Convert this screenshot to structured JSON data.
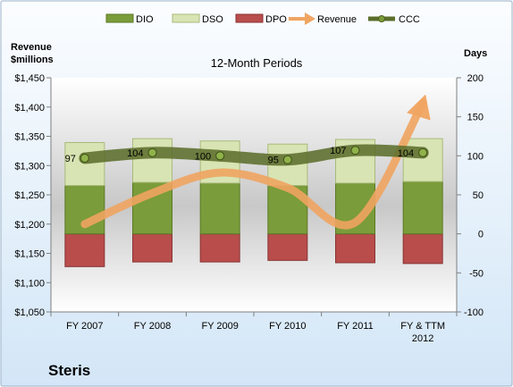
{
  "chart_data": {
    "type": "bar",
    "title": "12-Month Periods",
    "company": "Steris",
    "y_left_label": "Revenue\n$millions",
    "y_right_label": "Days",
    "categories": [
      "FY 2007",
      "FY 2008",
      "FY 2009",
      "FY 2010",
      "FY 2011",
      "FY & TTM\n2012"
    ],
    "y_left_ticks": [
      "$1,050",
      "$1,100",
      "$1,150",
      "$1,200",
      "$1,250",
      "$1,300",
      "$1,350",
      "$1,400",
      "$1,450"
    ],
    "y_right_ticks": [
      "-100",
      "-50",
      "0",
      "50",
      "100",
      "150",
      "200"
    ],
    "ylim_left": [
      1050,
      1450
    ],
    "ylim_right": [
      -100,
      200
    ],
    "legend_position": "top",
    "grid": false,
    "series": [
      {
        "name": "DIO",
        "type": "stacked-bar",
        "axis": "right",
        "color": "#7a9c3a",
        "values": [
          62,
          66,
          65,
          62,
          65,
          67
        ]
      },
      {
        "name": "DSO",
        "type": "stacked-bar",
        "axis": "right",
        "color": "#d8e4b3",
        "values": [
          55,
          56,
          54,
          53,
          56,
          55
        ]
      },
      {
        "name": "DPO",
        "type": "bar-negative",
        "axis": "right",
        "color": "#b84d4c",
        "values": [
          -42,
          -36,
          -36,
          -34,
          -37,
          -38
        ]
      },
      {
        "name": "Revenue",
        "type": "curve-arrow",
        "axis": "left",
        "color": "#f0a461",
        "values": [
          1200,
          1253,
          1288,
          1262,
          1203,
          1407
        ]
      },
      {
        "name": "CCC",
        "type": "line",
        "axis": "right",
        "color": "#5c6e2c",
        "values": [
          97,
          104,
          100,
          95,
          107,
          104
        ],
        "labels": [
          "97",
          "104",
          "100",
          "95",
          "107",
          "104"
        ]
      }
    ]
  }
}
